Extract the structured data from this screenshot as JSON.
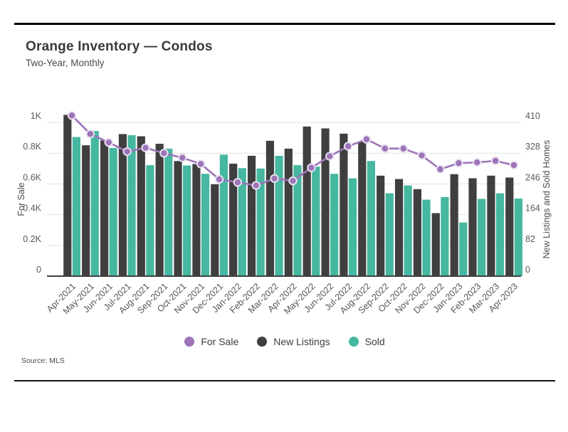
{
  "page": {
    "title": "Orange Inventory — Condos",
    "subtitle": "Two-Year, Monthly",
    "source": "Source: MLS"
  },
  "legend": [
    {
      "label": "For Sale",
      "color": "#9C74B8",
      "marker": "circle"
    },
    {
      "label": "New Listings",
      "color": "#3F3F3F",
      "marker": "circle"
    },
    {
      "label": "Sold",
      "color": "#46B7A0",
      "marker": "circle"
    }
  ],
  "colors": {
    "for_sale_line": "#9C74B8",
    "for_sale_dot_ring": "#E8E0F0",
    "new_listings_bar": "#3F3F3F",
    "sold_bar": "#46B7A0",
    "gridline": "#E1E1E1",
    "baseline": "#3F3F3F"
  },
  "chart_data": {
    "type": "combo (grouped bar + line)",
    "title": "Orange Inventory — Condos",
    "subtitle": "Two-Year, Monthly",
    "grid": true,
    "legend_position": "bottom",
    "categories": [
      "Apr-2021",
      "May-2021",
      "Jun-2021",
      "Jul-2021",
      "Aug-2021",
      "Sep-2021",
      "Oct-2021",
      "Nov-2021",
      "Dec-2021",
      "Jan-2022",
      "Feb-2022",
      "Mar-2022",
      "Apr-2022",
      "May-2022",
      "Jun-2022",
      "Jul-2022",
      "Aug-2022",
      "Sep-2022",
      "Oct-2022",
      "Nov-2022",
      "Dec-2022",
      "Jan-2023",
      "Feb-2023",
      "Mar-2023",
      "Apr-2023"
    ],
    "left_axis": {
      "title": "For Sale",
      "min": 0,
      "max": 1000,
      "tick_labels": [
        "0",
        "0.2K",
        "0.4K",
        "0.6K",
        "0.8K",
        "1K"
      ]
    },
    "right_axis": {
      "title": "New Listings and Sold Homes",
      "min": 0,
      "max": 410,
      "tick_labels": [
        "0",
        "82",
        "164",
        "246",
        "328",
        "410"
      ]
    },
    "series": [
      {
        "name": "For Sale",
        "type": "line",
        "axis": "left",
        "color": "#9C74B8",
        "values": [
          1045,
          925,
          870,
          810,
          835,
          800,
          770,
          730,
          630,
          610,
          590,
          635,
          620,
          705,
          780,
          845,
          890,
          830,
          830,
          785,
          695,
          735,
          740,
          750,
          722
        ]
      },
      {
        "name": "New Listings",
        "type": "bar",
        "axis": "right",
        "color": "#3F3F3F",
        "values": [
          430,
          349,
          362,
          379,
          373,
          353,
          307,
          299,
          245,
          300,
          321,
          361,
          340,
          399,
          394,
          380,
          358,
          268,
          259,
          232,
          168,
          272,
          261,
          268,
          263
        ]
      },
      {
        "name": "Sold",
        "type": "bar",
        "axis": "right",
        "color": "#46B7A0",
        "values": [
          371,
          387,
          342,
          376,
          296,
          340,
          295,
          273,
          324,
          288,
          287,
          321,
          296,
          292,
          273,
          261,
          307,
          221,
          242,
          204,
          211,
          143,
          206,
          221,
          207
        ]
      }
    ]
  }
}
